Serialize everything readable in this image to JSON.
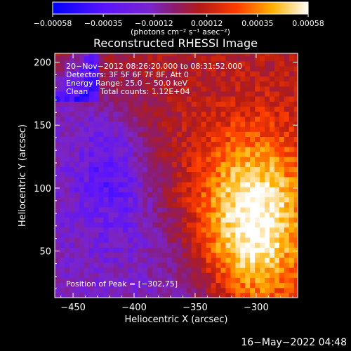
{
  "chart_data": {
    "type": "heatmap",
    "title": "Reconstructed RHESSI Image",
    "xlabel": "Heliocentric X (arcsec)",
    "ylabel": "Heliocentric Y (arcsec)",
    "xlim": [
      -465,
      -266
    ],
    "ylim": [
      13,
      207
    ],
    "x_ticks": [
      -450,
      -400,
      -350,
      -300
    ],
    "x_tick_labels": [
      "−450",
      "−400",
      "−350",
      "−300"
    ],
    "y_ticks": [
      50,
      100,
      150,
      200
    ],
    "y_tick_labels": [
      "50",
      "100",
      "150",
      "200"
    ],
    "colorbar": {
      "range": [
        -0.00058,
        0.00058
      ],
      "ticks": [
        -0.00058,
        -0.00035,
        -0.00012,
        0.00012,
        0.00035,
        0.00058
      ],
      "tick_labels": [
        "−0.00058",
        "−0.00035",
        "−0.00012",
        "0.00012",
        "0.00035",
        "0.00058"
      ],
      "unit_label": "(photons cm⁻² s⁻¹ asec⁻²)",
      "colors": [
        "#0000ff",
        "#5a14ff",
        "#7a24cc",
        "#8c1c6a",
        "#b41c14",
        "#ff3c00",
        "#ffb000",
        "#ffffff"
      ]
    },
    "annotations": [
      "20−Nov−2012 08:26:20.000 to 08:31:52.000",
      "Detectors: 3F 5F 6F 7F 8F, Att 0",
      "Energy Range: 25.0 − 50.0 keV",
      "Clean     Total counts: 1.12E+04"
    ],
    "peak_label": "Position of Peak = [−302,75]",
    "peak_position": [
      -302,
      75
    ]
  },
  "footer": {
    "timestamp": "16−May−2022 04:48"
  }
}
